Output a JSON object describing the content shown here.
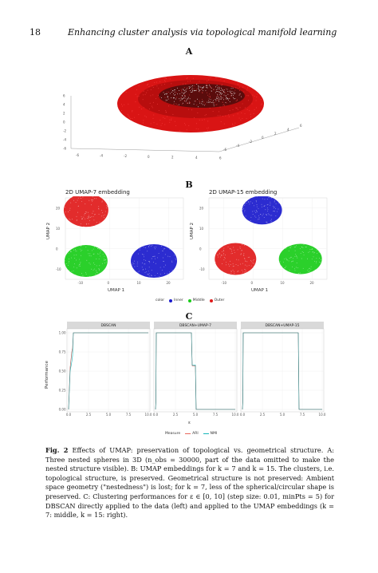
{
  "header": {
    "page_number": "18",
    "running_title": "Enhancing cluster analysis via topological manifold learning"
  },
  "panels": {
    "a": "A",
    "b": "B",
    "c": "C"
  },
  "panel_a": {
    "z_ticks": [
      "-6",
      "-4",
      "-2",
      "0",
      "2",
      "4",
      "6"
    ],
    "x_ticks": [
      "-6",
      "-4",
      "-2",
      "0",
      "2",
      "4",
      "6"
    ],
    "y_ticks": [
      "-6",
      "-4",
      "-2",
      "0",
      "2",
      "4",
      "6"
    ]
  },
  "panel_b": {
    "left": {
      "title": "2D UMAP-7 embedding",
      "xlabel": "UMAP 1",
      "ylabel": "UMAP 2",
      "x_ticks": [
        "-10",
        "0",
        "10",
        "20"
      ],
      "y_ticks": [
        "20",
        "10",
        "0",
        "-10"
      ]
    },
    "right": {
      "title": "2D UMAP-15 embedding",
      "xlabel": "UMAP 1",
      "ylabel": "UMAP 2",
      "x_ticks": [
        "-10",
        "0",
        "10",
        "20"
      ],
      "y_ticks": [
        "20",
        "10",
        "0",
        "-10"
      ]
    },
    "legend": {
      "title": "color",
      "items": [
        {
          "label": "Inner",
          "color": "#1a1acc"
        },
        {
          "label": "Middle",
          "color": "#19cc19"
        },
        {
          "label": "Outer",
          "color": "#e01a1a"
        }
      ]
    }
  },
  "panel_c": {
    "ylabel": "Performance",
    "xlabel": "ε",
    "y_ticks": [
      "1.00",
      "0.75",
      "0.50",
      "0.25",
      "0.00"
    ],
    "x_ticks": [
      "0.0",
      "2.5",
      "5.0",
      "7.5",
      "10.0"
    ],
    "legend": {
      "title": "Measure",
      "items": [
        {
          "label": "ARI",
          "color": "#e8665c"
        },
        {
          "label": "NMI",
          "color": "#17b6b9"
        }
      ]
    }
  },
  "chart_data": [
    {
      "type": "line",
      "title": "DBSCAN",
      "x": [
        0,
        0.2,
        0.4,
        0.5,
        0.6,
        2,
        4,
        6,
        8,
        10
      ],
      "series": [
        {
          "name": "ARI",
          "values": [
            0,
            0.55,
            0.75,
            0.8,
            1.0,
            1.0,
            1.0,
            1.0,
            1.0,
            1.0
          ]
        },
        {
          "name": "NMI",
          "values": [
            0,
            0.5,
            0.62,
            0.7,
            1.0,
            1.0,
            1.0,
            1.0,
            1.0,
            1.0
          ]
        }
      ],
      "xlim": [
        0,
        10
      ],
      "ylim": [
        0,
        1
      ]
    },
    {
      "type": "line",
      "title": "DBSCAN+UMAP-7",
      "x": [
        0,
        0.05,
        0.1,
        4.5,
        4.6,
        5.0,
        5.1,
        10
      ],
      "series": [
        {
          "name": "ARI",
          "values": [
            0,
            0.1,
            1.0,
            1.0,
            0.57,
            0.57,
            0,
            0
          ]
        },
        {
          "name": "NMI",
          "values": [
            0,
            0.1,
            1.0,
            1.0,
            0.58,
            0.58,
            0,
            0
          ]
        }
      ],
      "xlim": [
        0,
        10
      ],
      "ylim": [
        0,
        1
      ]
    },
    {
      "type": "line",
      "title": "DBSCAN+UMAP-15",
      "x": [
        0,
        0.05,
        0.1,
        7.0,
        7.1,
        10
      ],
      "series": [
        {
          "name": "ARI",
          "values": [
            0,
            0.1,
            1.0,
            1.0,
            0,
            0
          ]
        },
        {
          "name": "NMI",
          "values": [
            0,
            0.1,
            1.0,
            1.0,
            0,
            0
          ]
        }
      ],
      "xlim": [
        0,
        10
      ],
      "ylim": [
        0,
        1
      ]
    }
  ],
  "caption": {
    "label": "Fig. 2",
    "text": "Effects of UMAP: preservation of topological vs. geometrical structure. A: Three nested spheres in 3D (n_obs = 30000, part of the data omitted to make the nested structure visible). B: UMAP embeddings for k = 7 and k = 15. The clusters, i.e. topological structure, is preserved. Geometrical structure is not preserved: Ambient space geometry (\"nestedness\") is lost; for k = 7, less of the spherical/circular shape is preserved. C: Clustering performances for ε ∈ [0, 10] (step size: 0.01, minPts = 5) for DBSCAN directly applied to the data (left) and applied to the UMAP embeddings (k = 7: middle, k = 15: right)."
  }
}
